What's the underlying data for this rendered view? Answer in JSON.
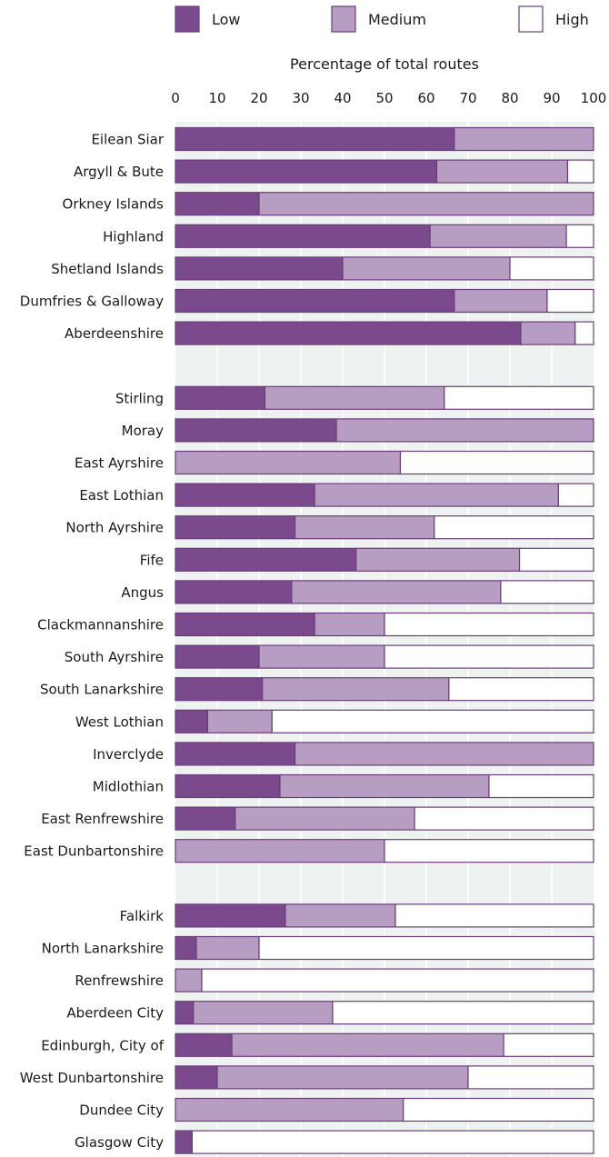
{
  "chart_data": {
    "type": "bar",
    "orientation": "horizontal",
    "stacked": true,
    "title": "",
    "xlabel": "Percentage of total routes",
    "ylabel": "",
    "xlim": [
      0,
      100
    ],
    "x_ticks": [
      0,
      10,
      20,
      30,
      40,
      50,
      60,
      70,
      80,
      90,
      100
    ],
    "x_axis_position": "top",
    "grid": true,
    "legend": {
      "placement": "top",
      "entries": [
        "Low",
        "Medium",
        "High"
      ]
    },
    "colors": {
      "Low": "#7b4a8c",
      "Medium": "#b89dc2",
      "High": "#ffffff",
      "outline": "#6a3d7a",
      "plot_bg": "#eef3f1",
      "gridline": "#ffffff"
    },
    "groups": [
      {
        "categories": [
          "Eilean Siar",
          "Argyll & Bute",
          "Orkney Islands",
          "Highland",
          "Shetland Islands",
          "Dumfries & Galloway",
          "Aberdeenshire"
        ]
      },
      {
        "categories": [
          "Stirling",
          "Moray",
          "East Ayrshire",
          "East Lothian",
          "North Ayrshire",
          "Fife",
          "Angus",
          "Clackmannanshire",
          "South Ayrshire",
          "South Lanarkshire",
          "West Lothian",
          "Inverclyde",
          "Midlothian",
          "East Renfrewshire",
          "East Dunbartonshire"
        ]
      },
      {
        "categories": [
          "Falkirk",
          "North Lanarkshire",
          "Renfrewshire",
          "Aberdeen City",
          "Edinburgh, City of",
          "West Dunbartonshire",
          "Dundee City",
          "Glasgow City"
        ]
      }
    ],
    "categories": [
      "Eilean Siar",
      "Argyll & Bute",
      "Orkney Islands",
      "Highland",
      "Shetland Islands",
      "Dumfries & Galloway",
      "Aberdeenshire",
      "Stirling",
      "Moray",
      "East Ayrshire",
      "East Lothian",
      "North Ayrshire",
      "Fife",
      "Angus",
      "Clackmannanshire",
      "South Ayrshire",
      "South Lanarkshire",
      "West Lothian",
      "Inverclyde",
      "Midlothian",
      "East Renfrewshire",
      "East Dunbartonshire",
      "Falkirk",
      "North Lanarkshire",
      "Renfrewshire",
      "Aberdeen City",
      "Edinburgh, City of",
      "West Dunbartonshire",
      "Dundee City",
      "Glasgow City"
    ],
    "series": [
      {
        "name": "Low",
        "values": [
          66.7,
          62.5,
          20,
          60.9,
          40,
          66.7,
          82.6,
          21.4,
          38.5,
          0,
          33.3,
          28.6,
          43.2,
          27.8,
          33.3,
          20,
          20.8,
          7.7,
          28.6,
          25,
          14.3,
          0,
          26.3,
          5,
          0,
          4.3,
          13.5,
          10,
          0,
          4
        ]
      },
      {
        "name": "Medium",
        "values": [
          33.3,
          31.3,
          80,
          32.6,
          40,
          22.2,
          13,
          42.9,
          61.5,
          53.8,
          58.3,
          33.3,
          39.1,
          50,
          16.7,
          30,
          44.6,
          15.4,
          71.4,
          50,
          42.9,
          50,
          26.3,
          15,
          6.3,
          33.3,
          65,
          60,
          54.5,
          0
        ]
      },
      {
        "name": "High",
        "values": [
          0,
          6.2,
          0,
          6.5,
          20,
          11.1,
          4.4,
          35.7,
          0,
          46.2,
          8.4,
          38.1,
          17.7,
          22.2,
          50,
          50,
          34.6,
          76.9,
          0,
          25,
          42.8,
          50,
          47.4,
          80,
          93.7,
          62.4,
          21.5,
          30,
          45.5,
          96
        ]
      }
    ]
  }
}
